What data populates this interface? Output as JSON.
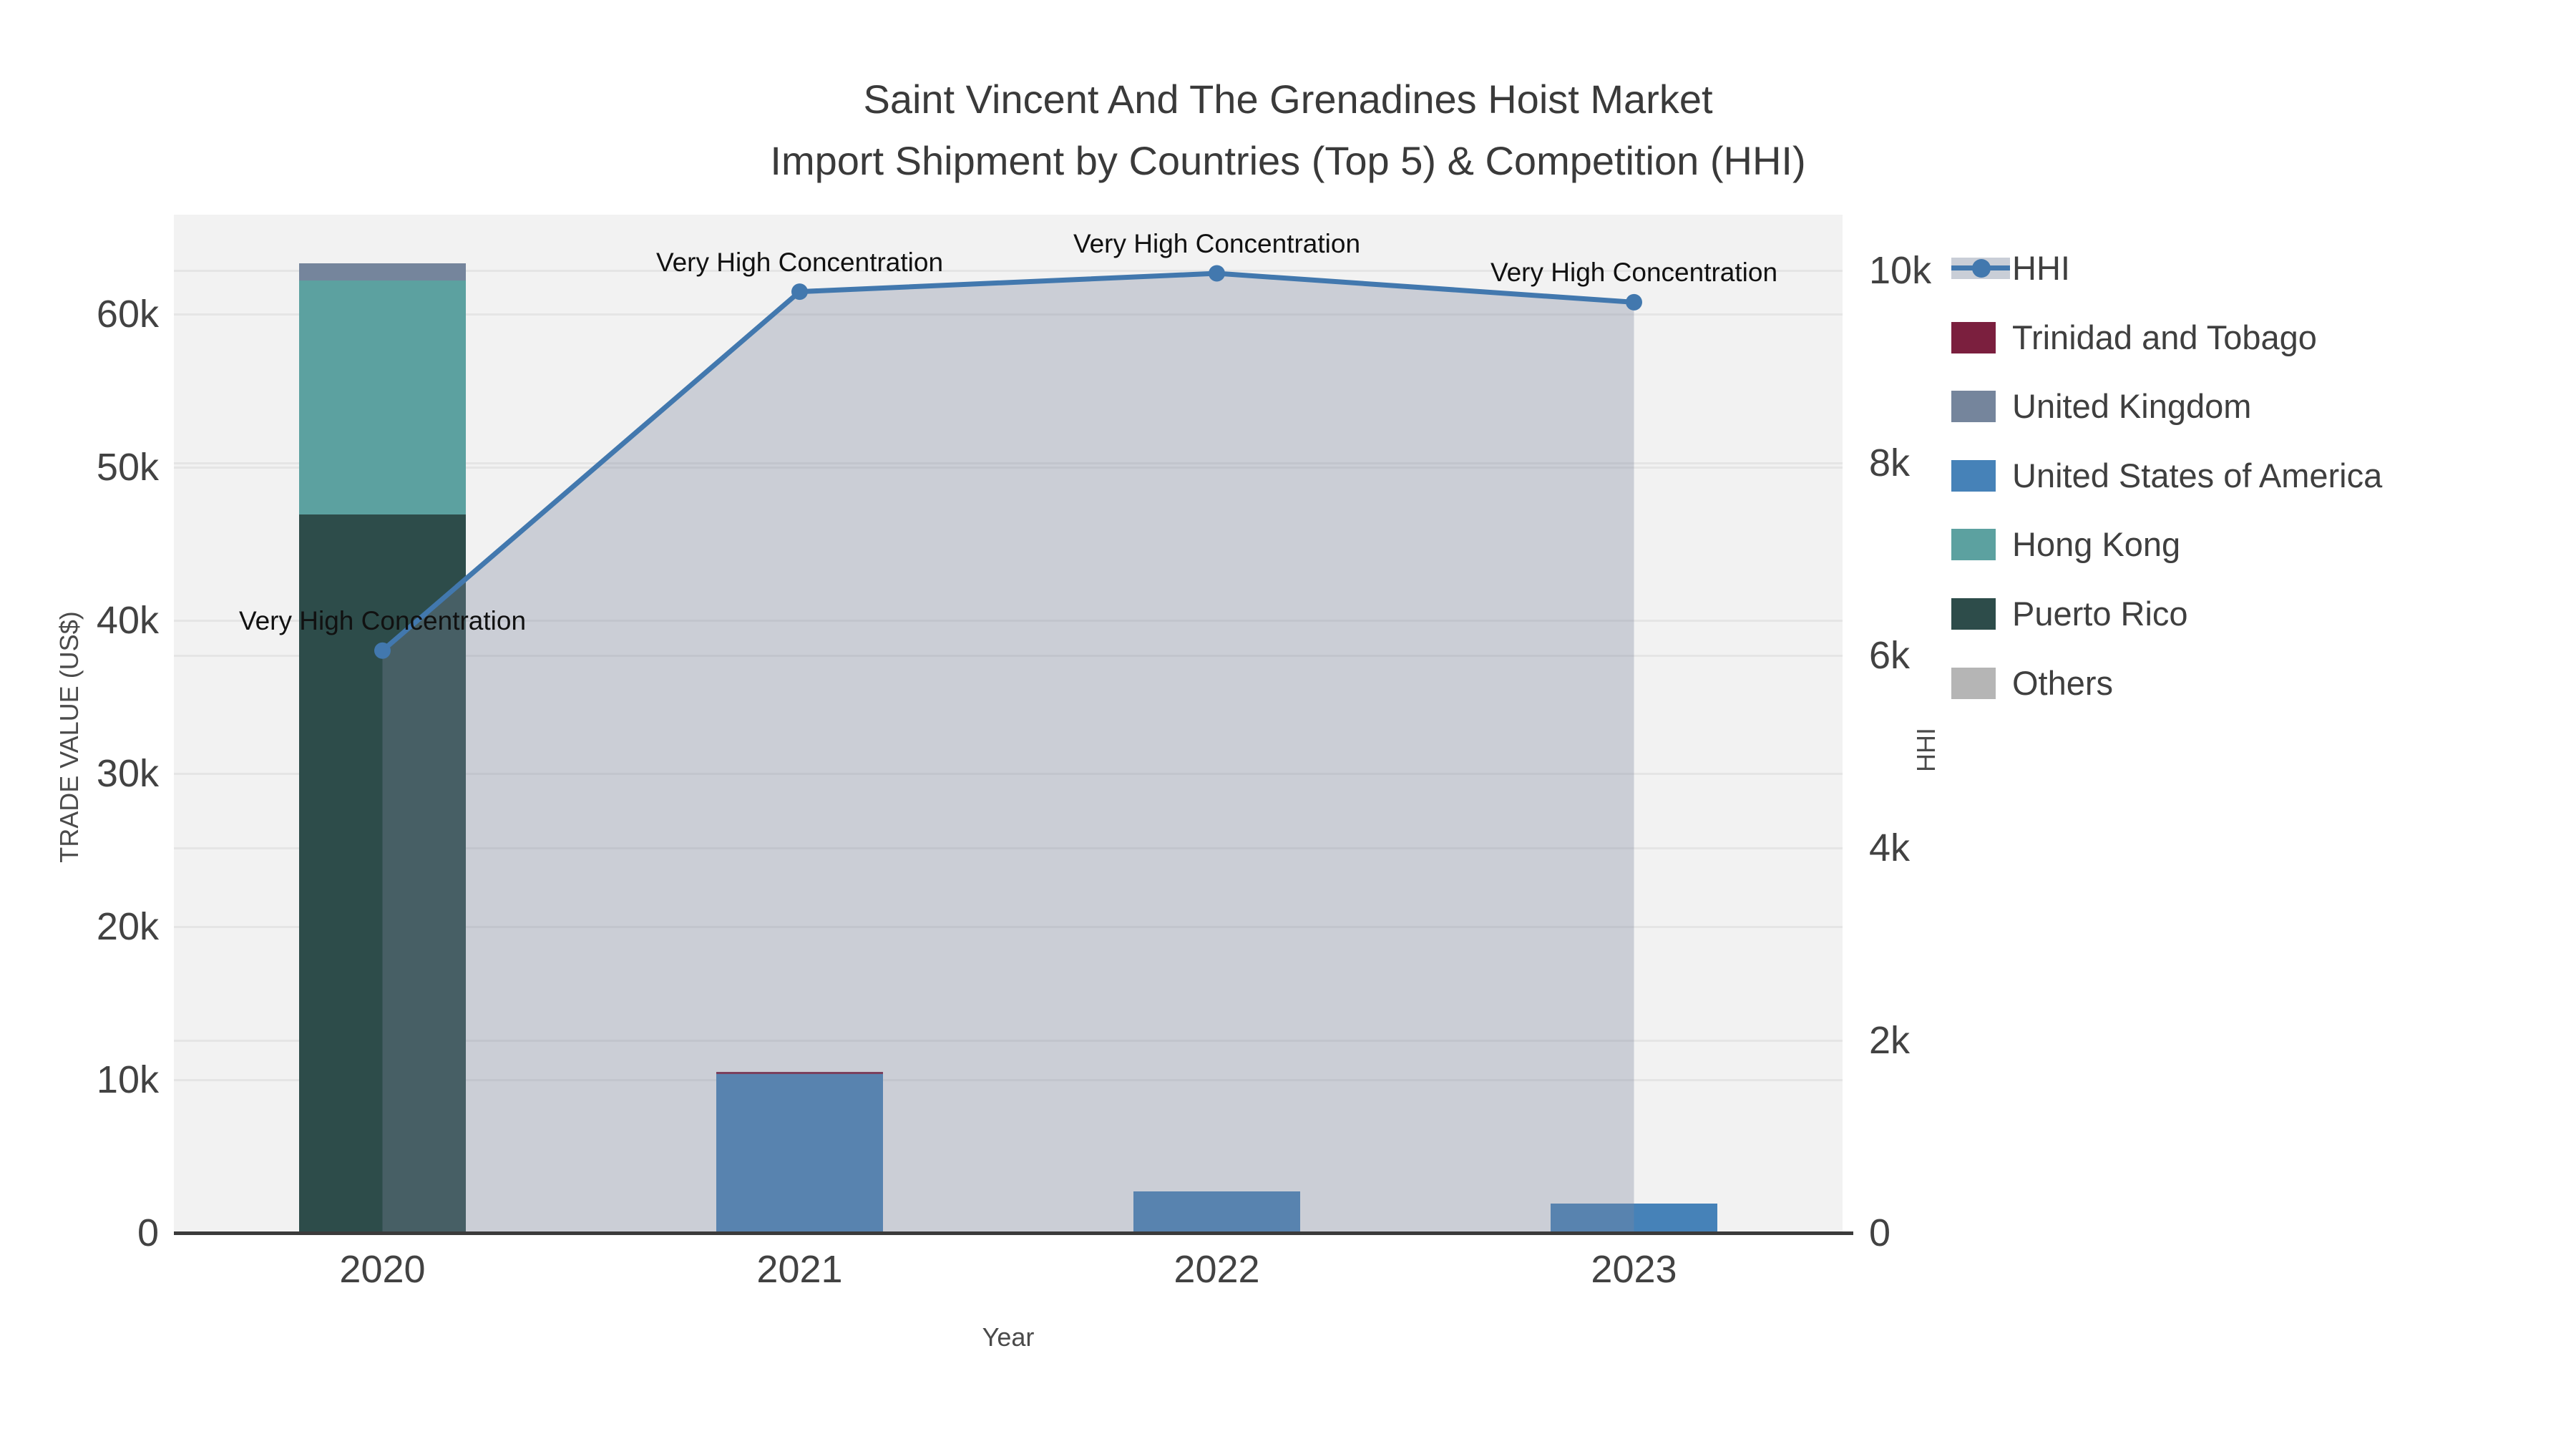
{
  "title": {
    "line1": "Saint Vincent And The Grenadines Hoist Market",
    "line2": "Import Shipment by Countries (Top 5) & Competition (HHI)"
  },
  "axes": {
    "x": {
      "title": "Year",
      "categories": [
        "2020",
        "2021",
        "2022",
        "2023"
      ]
    },
    "left": {
      "title": "TRADE VALUE (US$)",
      "max": 66500,
      "tick_values": [
        0,
        10000,
        20000,
        30000,
        40000,
        50000,
        60000
      ],
      "tick_labels": [
        "0",
        "10k",
        "20k",
        "30k",
        "40k",
        "50k",
        "60k"
      ]
    },
    "right": {
      "title": "HHI",
      "max": 10580,
      "tick_values": [
        0,
        2000,
        4000,
        6000,
        8000,
        10000
      ],
      "tick_labels": [
        "0",
        "2k",
        "4k",
        "6k",
        "8k",
        "10k"
      ]
    }
  },
  "colors": {
    "hhi_line": "#4278ae",
    "area_fill": "#7d879e",
    "area_fill_opacity": 0.33,
    "plot_bg": "#f2f2f2",
    "gridline": "#e5e5e5",
    "series": {
      "Trinidad and Tobago": "#7b1f3e",
      "United Kingdom": "#75859c",
      "United States of America": "#4682b8",
      "Hong Kong": "#5ca1a0",
      "Puerto Rico": "#2d4c4a",
      "Others": "#b5b5b5"
    }
  },
  "legend": {
    "items": [
      {
        "label": "HHI",
        "type": "line",
        "color": "#4278ae"
      },
      {
        "label": "Trinidad and Tobago",
        "type": "square",
        "color": "#7b1f3e"
      },
      {
        "label": "United Kingdom",
        "type": "square",
        "color": "#75859c"
      },
      {
        "label": "United States of America",
        "type": "square",
        "color": "#4682b8"
      },
      {
        "label": "Hong Kong",
        "type": "square",
        "color": "#5ca1a0"
      },
      {
        "label": "Puerto Rico",
        "type": "square",
        "color": "#2d4c4a"
      },
      {
        "label": "Others",
        "type": "square",
        "color": "#b5b5b5"
      }
    ]
  },
  "chart_data": {
    "type": "combo: stacked bar (left axis) + line with area fill (right axis)",
    "title": "Saint Vincent And The Grenadines Hoist Market Import Shipment by Countries (Top 5) & Competition (HHI)",
    "categories": [
      "2020",
      "2021",
      "2022",
      "2023"
    ],
    "xlabel": "Year",
    "ylabel_left": "TRADE VALUE (US$)",
    "ylabel_right": "HHI",
    "ylim_left": [
      0,
      66500
    ],
    "ylim_right": [
      0,
      10580
    ],
    "grid": true,
    "legend_position": "right",
    "bar_series_stack_order_bottom_to_top": [
      "Puerto Rico",
      "Hong Kong",
      "United States of America",
      "Trinidad and Tobago",
      "United Kingdom",
      "Others"
    ],
    "series": [
      {
        "name": "Puerto Rico",
        "type": "bar",
        "values": [
          46900,
          0,
          0,
          0
        ]
      },
      {
        "name": "Hong Kong",
        "type": "bar",
        "values": [
          15300,
          0,
          0,
          0
        ]
      },
      {
        "name": "United States of America",
        "type": "bar",
        "values": [
          0,
          10400,
          2700,
          1900
        ]
      },
      {
        "name": "Trinidad and Tobago",
        "type": "bar",
        "values": [
          0,
          120,
          0,
          0
        ]
      },
      {
        "name": "United Kingdom",
        "type": "bar",
        "values": [
          1100,
          0,
          0,
          0
        ]
      },
      {
        "name": "Others",
        "type": "bar",
        "values": [
          0,
          0,
          0,
          0
        ]
      },
      {
        "name": "HHI",
        "type": "line+area",
        "axis": "right",
        "values": [
          6050,
          9780,
          9970,
          9670
        ]
      }
    ],
    "annotations": [
      {
        "text": "Very High Concentration",
        "category": "2020"
      },
      {
        "text": "Very High Concentration",
        "category": "2021"
      },
      {
        "text": "Very High Concentration",
        "category": "2022"
      },
      {
        "text": "Very High Concentration",
        "category": "2023"
      }
    ]
  }
}
